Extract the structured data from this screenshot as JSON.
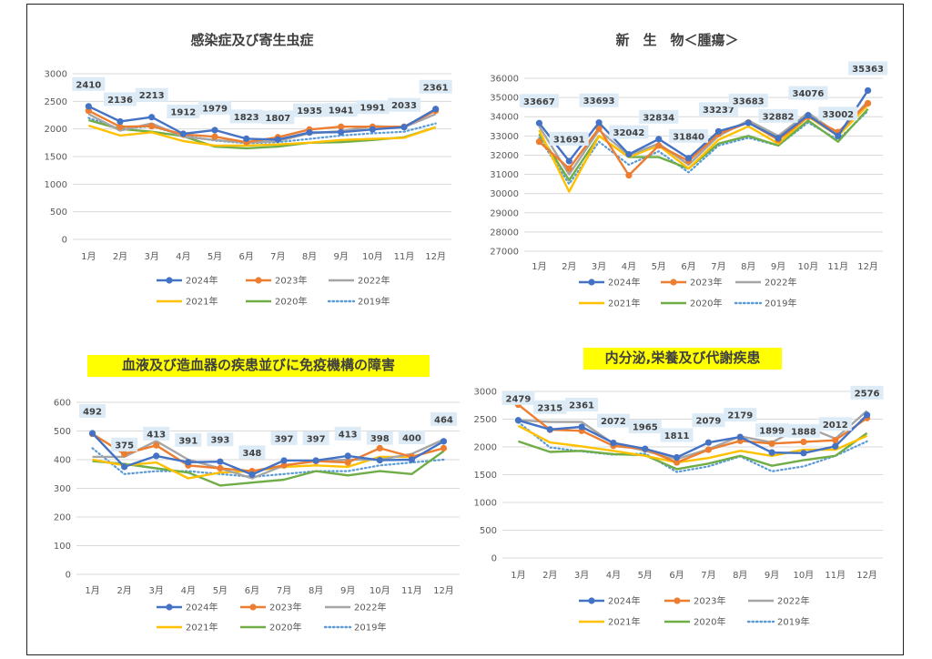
{
  "colors": {
    "2024年": "#4472C4",
    "2023年": "#ED7D31",
    "2022年": "#A5A5A5",
    "2021年": "#FFC000",
    "2020年": "#70AD47",
    "2019年": "#5B9BD5",
    "label_bg": "#DDEBF7",
    "highlight": "#FFFF00",
    "grid": "#D9D9D9",
    "axis_text": "#595959"
  },
  "chart_data": [
    {
      "type": "line",
      "title": "感染症及び寄生虫症",
      "title_highlight": false,
      "categories": [
        "1月",
        "2月",
        "3月",
        "4月",
        "5月",
        "6月",
        "7月",
        "8月",
        "9月",
        "10月",
        "11月",
        "12月"
      ],
      "ylim": [
        0,
        3000
      ],
      "yticks": [
        0,
        500,
        1000,
        1500,
        2000,
        2500,
        3000
      ],
      "grid": true,
      "legend": "bottom",
      "series": [
        {
          "name": "2024年",
          "values": [
            2410,
            2136,
            2213,
            1912,
            1979,
            1823,
            1807,
            1935,
            1941,
            1991,
            2033,
            2361
          ],
          "labeled": true
        },
        {
          "name": "2023年",
          "values": [
            2330,
            2040,
            2050,
            1900,
            1860,
            1760,
            1850,
            1990,
            2040,
            2040,
            2040,
            2330
          ]
        },
        {
          "name": "2022年",
          "values": [
            2270,
            1970,
            2100,
            1860,
            1800,
            1750,
            1780,
            1920,
            1960,
            2050,
            2030,
            2270
          ]
        },
        {
          "name": "2021年",
          "values": [
            2060,
            1880,
            1940,
            1780,
            1700,
            1700,
            1720,
            1750,
            1800,
            1820,
            1840,
            2030
          ]
        },
        {
          "name": "2020年",
          "values": [
            2160,
            2000,
            1950,
            1870,
            1680,
            1650,
            1680,
            1750,
            1760,
            1800,
            1850,
            2030
          ]
        },
        {
          "name": "2019年",
          "values": [
            2200,
            2000,
            2050,
            1880,
            1790,
            1740,
            1760,
            1820,
            1880,
            1920,
            1950,
            2100
          ]
        }
      ]
    },
    {
      "type": "line",
      "title": "新　生　物＜腫瘍＞",
      "title_highlight": false,
      "categories": [
        "1月",
        "2月",
        "3月",
        "4月",
        "5月",
        "6月",
        "7月",
        "8月",
        "9月",
        "10月",
        "11月",
        "12月"
      ],
      "ylim": [
        27000,
        36000
      ],
      "yticks": [
        27000,
        28000,
        29000,
        30000,
        31000,
        32000,
        33000,
        34000,
        35000,
        36000
      ],
      "grid": true,
      "legend": "bottom",
      "series": [
        {
          "name": "2024年",
          "values": [
            33667,
            31691,
            33693,
            32042,
            32834,
            31840,
            33237,
            33683,
            32882,
            34076,
            33002,
            35363
          ],
          "labeled": true
        },
        {
          "name": "2023年",
          "values": [
            32700,
            31300,
            33400,
            30950,
            32500,
            31700,
            33100,
            33700,
            32800,
            34000,
            33200,
            34700
          ]
        },
        {
          "name": "2022年",
          "values": [
            33500,
            31000,
            33300,
            32000,
            32600,
            31500,
            33000,
            33800,
            33000,
            34200,
            33100,
            34800
          ]
        },
        {
          "name": "2021年",
          "values": [
            33300,
            30100,
            33000,
            31900,
            32500,
            31300,
            32800,
            33500,
            32600,
            34000,
            33000,
            34600
          ]
        },
        {
          "name": "2020年",
          "values": [
            33100,
            30700,
            33000,
            31900,
            31900,
            31300,
            32600,
            33000,
            32500,
            33800,
            32700,
            34400
          ]
        },
        {
          "name": "2019年",
          "values": [
            32900,
            30500,
            32700,
            31500,
            32200,
            31100,
            32500,
            32900,
            32500,
            33700,
            32800,
            34300
          ]
        }
      ]
    },
    {
      "type": "line",
      "title": "血液及び造血器の疾患並びに免疫機構の障害",
      "title_highlight": true,
      "categories": [
        "1月",
        "2月",
        "3月",
        "4月",
        "5月",
        "6月",
        "7月",
        "8月",
        "9月",
        "10月",
        "11月",
        "12月"
      ],
      "ylim": [
        0,
        600
      ],
      "yticks": [
        0,
        100,
        200,
        300,
        400,
        500,
        600
      ],
      "grid": true,
      "legend": "bottom",
      "series": [
        {
          "name": "2024年",
          "values": [
            492,
            375,
            413,
            391,
            393,
            348,
            397,
            397,
            413,
            398,
            400,
            464
          ],
          "labeled": true
        },
        {
          "name": "2023年",
          "values": [
            490,
            420,
            450,
            380,
            370,
            360,
            380,
            395,
            390,
            440,
            410,
            440
          ]
        },
        {
          "name": "2022年",
          "values": [
            410,
            410,
            465,
            400,
            370,
            335,
            380,
            395,
            400,
            400,
            420,
            470
          ]
        },
        {
          "name": "2021年",
          "values": [
            400,
            380,
            390,
            335,
            355,
            360,
            375,
            380,
            375,
            410,
            410,
            440
          ]
        },
        {
          "name": "2020年",
          "values": [
            395,
            385,
            370,
            355,
            310,
            320,
            330,
            360,
            345,
            360,
            350,
            430
          ]
        },
        {
          "name": "2019年",
          "values": [
            440,
            350,
            360,
            360,
            350,
            340,
            350,
            360,
            360,
            380,
            390,
            400
          ]
        }
      ]
    },
    {
      "type": "line",
      "title": "内分泌,栄養及び代謝疾患",
      "title_highlight": true,
      "categories": [
        "1月",
        "2月",
        "3月",
        "4月",
        "5月",
        "6月",
        "7月",
        "8月",
        "9月",
        "10月",
        "11月",
        "12月"
      ],
      "ylim": [
        0,
        3000
      ],
      "yticks": [
        0,
        500,
        1000,
        1500,
        2000,
        2500,
        3000
      ],
      "grid": true,
      "legend": "bottom",
      "series": [
        {
          "name": "2024年",
          "values": [
            2479,
            2315,
            2361,
            2072,
            1965,
            1811,
            2079,
            2179,
            1899,
            1888,
            2012,
            2576
          ],
          "labeled": true
        },
        {
          "name": "2023年",
          "values": [
            2760,
            2310,
            2290,
            2020,
            1960,
            1720,
            1950,
            2110,
            2060,
            2090,
            2120,
            2520
          ]
        },
        {
          "name": "2022年",
          "values": [
            2480,
            2450,
            2450,
            2060,
            1930,
            1780,
            1960,
            2190,
            2080,
            2380,
            2150,
            2650
          ]
        },
        {
          "name": "2021年",
          "values": [
            2380,
            2080,
            2010,
            1930,
            1840,
            1720,
            1800,
            1930,
            1840,
            1950,
            1950,
            2200
          ]
        },
        {
          "name": "2020年",
          "values": [
            2100,
            1910,
            1930,
            1870,
            1850,
            1600,
            1700,
            1840,
            1660,
            1760,
            1840,
            2250
          ]
        },
        {
          "name": "2019年",
          "values": [
            2450,
            1990,
            1920,
            1860,
            1880,
            1550,
            1650,
            1830,
            1560,
            1650,
            1840,
            2100
          ]
        }
      ]
    }
  ]
}
